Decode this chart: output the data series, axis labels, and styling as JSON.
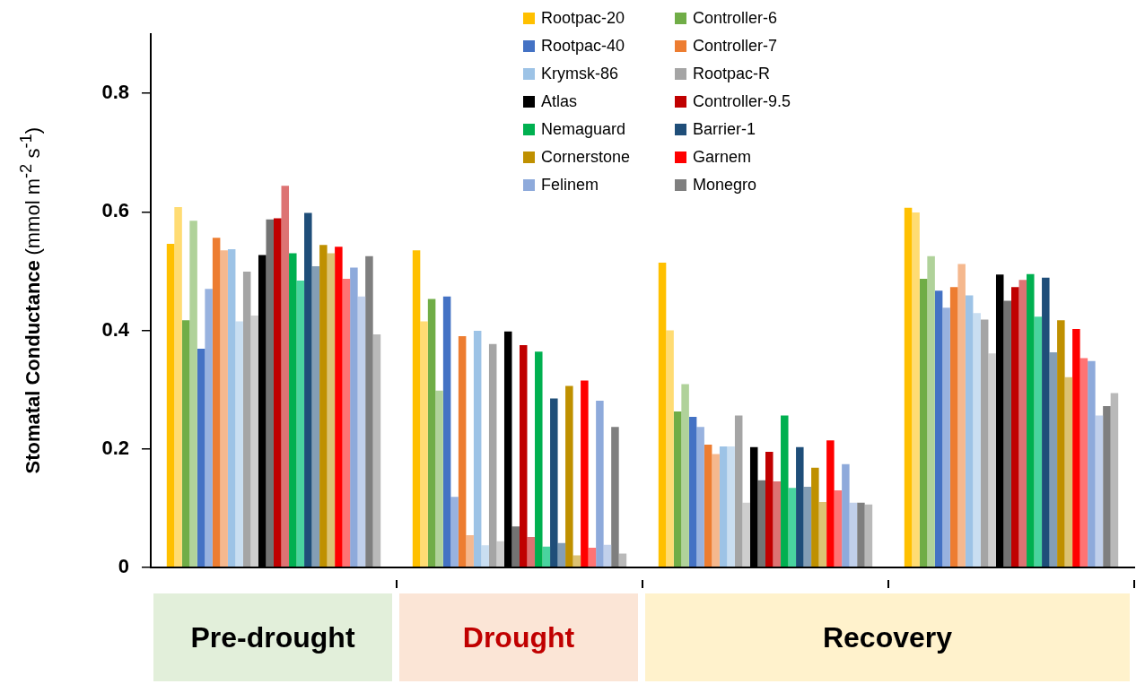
{
  "chart_data": {
    "type": "bar",
    "ylabel": "Stomatal Conductance (mmol m$^{-2}$ s$^{-1}$)",
    "categories": [
      "Pre-drought",
      "Drought",
      null,
      null
    ],
    "annotations": [
      "Recovery"
    ],
    "ylim": [
      0,
      0.9
    ],
    "yticks": [
      0,
      0.2,
      0.4,
      0.6,
      0.8
    ],
    "grid": false,
    "legend": "top",
    "series": [
      {
        "name": "Rootpac-20",
        "color": "#ffc000",
        "values": [
          0.546,
          0.535,
          0.514,
          0.607
        ]
      },
      {
        "color": "#ffdc73",
        "values": [
          0.608,
          0.415,
          0.4,
          0.599
        ]
      },
      {
        "name": "Controller-6",
        "color": "#70ad47",
        "values": [
          0.417,
          0.453,
          0.263,
          0.487
        ]
      },
      {
        "color": "#b0d29a",
        "values": [
          0.585,
          0.298,
          0.309,
          0.525
        ]
      },
      {
        "name": "Rootpac-40",
        "color": "#4472c4",
        "values": [
          0.369,
          0.457,
          0.254,
          0.467
        ]
      },
      {
        "color": "#98b2df",
        "values": [
          0.47,
          0.119,
          0.237,
          0.438
        ]
      },
      {
        "name": "Controller-7",
        "color": "#ed7d31",
        "values": [
          0.556,
          0.39,
          0.207,
          0.473
        ]
      },
      {
        "color": "#f5b88e",
        "values": [
          0.535,
          0.054,
          0.191,
          0.512
        ]
      },
      {
        "name": "Krymsk-86",
        "color": "#9dc3e6",
        "values": [
          0.537,
          0.399,
          0.204,
          0.459
        ]
      },
      {
        "color": "#c9def1",
        "values": [
          0.415,
          0.037,
          0.204,
          0.429
        ]
      },
      {
        "name": "Rootpac-R",
        "color": "#a5a5a5",
        "values": [
          0.499,
          0.377,
          0.256,
          0.418
        ]
      },
      {
        "color": "#cecece",
        "values": [
          0.425,
          0.044,
          0.109,
          0.361
        ]
      },
      {
        "name": "Atlas",
        "color": "#000000",
        "values": [
          0.527,
          0.398,
          0.203,
          0.494
        ]
      },
      {
        "color": "#737373",
        "values": [
          0.587,
          0.069,
          0.147,
          0.45
        ]
      },
      {
        "name": "Controller-9.5",
        "color": "#c00000",
        "values": [
          0.589,
          0.375,
          0.195,
          0.473
        ]
      },
      {
        "color": "#dd7373",
        "values": [
          0.644,
          0.051,
          0.145,
          0.485
        ]
      },
      {
        "name": "Nemaguard",
        "color": "#00b050",
        "values": [
          0.53,
          0.364,
          0.256,
          0.495
        ]
      },
      {
        "color": "#49d49f",
        "values": [
          0.484,
          0.035,
          0.134,
          0.423
        ]
      },
      {
        "name": "Barrier-1",
        "color": "#1f4e79",
        "values": [
          0.598,
          0.285,
          0.203,
          0.489
        ]
      },
      {
        "color": "#849eb5",
        "values": [
          0.508,
          0.041,
          0.136,
          0.363
        ]
      },
      {
        "name": "Cornerstone",
        "color": "#bf9000",
        "values": [
          0.544,
          0.306,
          0.168,
          0.417
        ]
      },
      {
        "color": "#dcc273",
        "values": [
          0.53,
          0.02,
          0.11,
          0.321
        ]
      },
      {
        "name": "Garnem",
        "color": "#ff0000",
        "values": [
          0.541,
          0.315,
          0.214,
          0.402
        ]
      },
      {
        "color": "#ff7373",
        "values": [
          0.487,
          0.033,
          0.13,
          0.353
        ]
      },
      {
        "name": "Felinem",
        "color": "#8eaadb",
        "values": [
          0.506,
          0.281,
          0.174,
          0.348
        ]
      },
      {
        "color": "#c1d0eb",
        "values": [
          0.457,
          0.038,
          0.109,
          0.256
        ]
      },
      {
        "name": "Monegro",
        "color": "#7f7f7f",
        "values": [
          0.525,
          0.237,
          0.109,
          0.272
        ]
      },
      {
        "color": "#b9b9b9",
        "values": [
          0.393,
          0.023,
          0.106,
          0.294
        ]
      }
    ]
  }
}
